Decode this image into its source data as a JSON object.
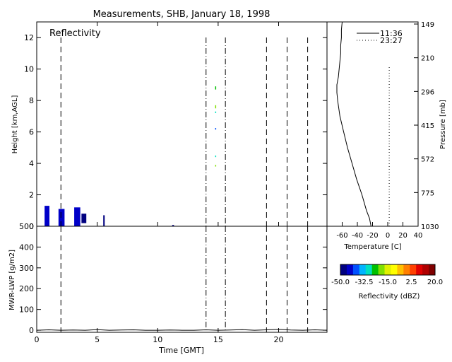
{
  "figure": {
    "title": "Measurements, SHB, January 18, 1998"
  },
  "chart_data": [
    {
      "panel": "reflectivity",
      "type": "heatmap",
      "title": "Reflectivity",
      "xlabel": "",
      "ylabel": "Height [km,AGL]",
      "xlim": [
        0,
        24
      ],
      "ylim": [
        0,
        13
      ],
      "yticks": [
        0,
        2,
        4,
        6,
        8,
        10,
        12
      ],
      "grid": false,
      "dashed_lines_x": [
        2.0,
        19.0,
        20.7,
        22.4
      ],
      "dashdot_lines_x": [
        14.0,
        15.6
      ],
      "echoes": [
        {
          "x": [
            0.65,
            1.05
          ],
          "y": [
            0.0,
            1.3
          ],
          "dbz": -45
        },
        {
          "x": [
            1.8,
            2.3
          ],
          "y": [
            0.0,
            1.1
          ],
          "dbz": -43
        },
        {
          "x": [
            3.1,
            3.6
          ],
          "y": [
            0.0,
            1.2
          ],
          "dbz": -45
        },
        {
          "x": [
            3.7,
            4.1
          ],
          "y": [
            0.2,
            0.8
          ],
          "dbz": -46
        },
        {
          "x": [
            5.5,
            5.62
          ],
          "y": [
            0.0,
            0.7
          ],
          "dbz": -47
        },
        {
          "x": [
            11.2,
            11.35
          ],
          "y": [
            0.0,
            0.08
          ],
          "dbz": -48
        },
        {
          "x": [
            14.75,
            14.8
          ],
          "y": [
            8.7,
            8.9
          ],
          "dbz": -25
        },
        {
          "x": [
            14.75,
            14.8
          ],
          "y": [
            7.5,
            7.7
          ],
          "dbz": -20
        },
        {
          "x": [
            14.75,
            14.8
          ],
          "y": [
            7.2,
            7.3
          ],
          "dbz": -27
        },
        {
          "x": [
            14.75,
            14.8
          ],
          "y": [
            6.15,
            6.25
          ],
          "dbz": -38
        },
        {
          "x": [
            14.75,
            14.8
          ],
          "y": [
            4.4,
            4.5
          ],
          "dbz": -30
        },
        {
          "x": [
            14.75,
            14.8
          ],
          "y": [
            3.8,
            3.9
          ],
          "dbz": -18
        }
      ]
    },
    {
      "panel": "lwp",
      "type": "line",
      "xlabel": "Time [GMT]",
      "ylabel": "MWR-LWP [g/m2]",
      "xlim": [
        0,
        24
      ],
      "ylim": [
        -10,
        500
      ],
      "xticks": [
        0,
        5,
        10,
        15,
        20
      ],
      "yticks": [
        0,
        100,
        200,
        300,
        400,
        500
      ],
      "grid": false,
      "dashed_lines_x": [
        2.0,
        19.0,
        20.7,
        22.4
      ],
      "dashdot_lines_x": [
        14.0,
        15.6
      ],
      "x": [
        0,
        1,
        2,
        3,
        4,
        5,
        6,
        7,
        8,
        9,
        10,
        11,
        12,
        13,
        14,
        15,
        16,
        17,
        18,
        19,
        20,
        21,
        22,
        23,
        24
      ],
      "y": [
        0,
        2,
        0,
        1,
        0,
        3,
        0,
        1,
        2,
        0,
        0,
        1,
        0,
        0,
        2,
        0,
        1,
        3,
        0,
        2,
        4,
        1,
        0,
        2,
        0
      ]
    },
    {
      "panel": "temperature-profile",
      "type": "line",
      "xlabel": "Temperature [C]",
      "ylabel": "Pressure [mb]",
      "xlim": [
        -80,
        40
      ],
      "xticks": [
        -60,
        -40,
        -20,
        0,
        20,
        40
      ],
      "right_axis_ticks": [
        "149",
        "210",
        "296",
        "415",
        "572",
        "775",
        "1030"
      ],
      "grid": false,
      "legend_position": "top-right",
      "series": [
        {
          "name": "11:36",
          "style": "solid",
          "height_km": [
            0,
            0.5,
            1,
            2,
            3,
            4,
            5,
            6,
            7,
            8,
            8.5,
            9,
            9.5,
            10,
            10.5,
            11,
            11.5,
            12,
            12.5,
            13
          ],
          "temp_c": [
            -22,
            -24,
            -28,
            -34,
            -41,
            -47,
            -53,
            -58,
            -63,
            -66,
            -67,
            -67,
            -65,
            -64,
            -63,
            -62,
            -62,
            -61,
            -61,
            -60
          ]
        },
        {
          "name": "23:27",
          "style": "dotted",
          "height_km": [
            0,
            10.2
          ],
          "temp_c": [
            2,
            2
          ]
        }
      ]
    },
    {
      "panel": "colorbar",
      "type": "heatmap",
      "label": "Reflectivity (dBZ)",
      "vmin": -50,
      "vmax": 20,
      "ticks": [
        "-50.0",
        "-32.5",
        "-15.0",
        "2.5",
        "20.0"
      ],
      "colors": [
        "#000080",
        "#0000c8",
        "#0050ff",
        "#00b4ff",
        "#00e0c0",
        "#00c000",
        "#80e000",
        "#e0f000",
        "#ffff00",
        "#ffc000",
        "#ff8000",
        "#ff4000",
        "#e00000",
        "#b00000",
        "#800000"
      ]
    }
  ]
}
